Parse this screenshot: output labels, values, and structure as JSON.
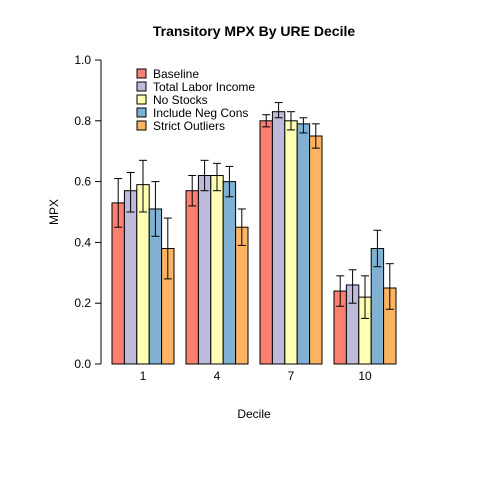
{
  "chart_data": {
    "type": "bar",
    "title": "Transitory MPX By URE Decile",
    "xlabel": "Decile",
    "ylabel": "MPX",
    "categories": [
      "1",
      "4",
      "7",
      "10"
    ],
    "ylim": [
      0,
      1
    ],
    "yticks": [
      "0.0",
      "0.2",
      "0.4",
      "0.6",
      "0.8",
      "1.0"
    ],
    "grid": false,
    "legend_position": "top-left",
    "error_bars": true,
    "series": [
      {
        "name": "Baseline",
        "color": "#FB8072",
        "values": [
          0.53,
          0.57,
          0.8,
          0.24
        ],
        "ci_low": [
          0.45,
          0.52,
          0.78,
          0.19
        ],
        "ci_high": [
          0.61,
          0.62,
          0.82,
          0.29
        ]
      },
      {
        "name": "Total Labor Income",
        "color": "#BEBADA",
        "values": [
          0.57,
          0.62,
          0.83,
          0.26
        ],
        "ci_low": [
          0.5,
          0.57,
          0.81,
          0.2
        ],
        "ci_high": [
          0.63,
          0.67,
          0.86,
          0.31
        ]
      },
      {
        "name": "No Stocks",
        "color": "#FFFFB3",
        "values": [
          0.59,
          0.62,
          0.8,
          0.22
        ],
        "ci_low": [
          0.5,
          0.57,
          0.77,
          0.15
        ],
        "ci_high": [
          0.67,
          0.66,
          0.83,
          0.29
        ]
      },
      {
        "name": "Include Neg Cons",
        "color": "#80B1D3",
        "values": [
          0.51,
          0.6,
          0.79,
          0.38
        ],
        "ci_low": [
          0.42,
          0.55,
          0.76,
          0.32
        ],
        "ci_high": [
          0.6,
          0.65,
          0.81,
          0.44
        ]
      },
      {
        "name": "Strict Outliers",
        "color": "#FDB462",
        "values": [
          0.38,
          0.45,
          0.75,
          0.25
        ],
        "ci_low": [
          0.28,
          0.39,
          0.71,
          0.18
        ],
        "ci_high": [
          0.48,
          0.51,
          0.79,
          0.33
        ]
      }
    ]
  }
}
